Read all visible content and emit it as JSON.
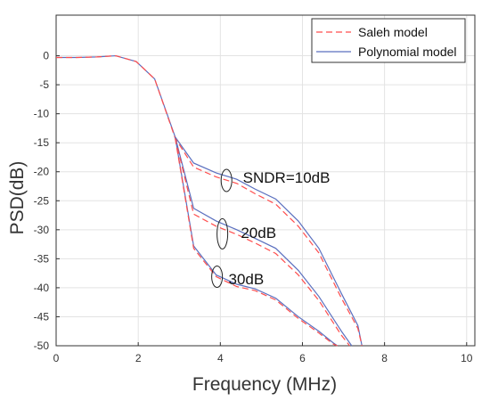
{
  "chart_data": {
    "type": "line",
    "title": "",
    "xlabel": "Frequency (MHz)",
    "ylabel": "PSD(dB)",
    "xlim": [
      0,
      10.2
    ],
    "ylim": [
      -50,
      7
    ],
    "xticks": [
      0,
      2,
      4,
      6,
      8,
      10
    ],
    "yticks": [
      0,
      -5,
      -10,
      -15,
      -20,
      -25,
      -30,
      -35,
      -40,
      -45,
      -50
    ],
    "grid": true,
    "legend_placement": "top-right",
    "legend": [
      "Saleh model",
      "Polynomial model"
    ],
    "colors": {
      "saleh": "#ff4d4d",
      "polynomial": "#5a6fbf",
      "grid": "#e3e3e3",
      "axis": "#333333"
    },
    "annotations": [
      {
        "text": "SNDR=10dB",
        "x": 4.55,
        "y": -21
      },
      {
        "text": "20dB",
        "x": 4.5,
        "y": -30.5
      },
      {
        "text": "30dB",
        "x": 4.2,
        "y": -38.5
      }
    ],
    "series": [
      {
        "name": "Polynomial model",
        "group": "SNDR=10dB",
        "x": [
          0,
          0.5,
          1,
          1.45,
          1.95,
          2.4,
          2.9,
          3.35,
          3.9,
          4.4,
          4.85,
          5.35,
          5.9,
          6.4,
          6.95,
          7.35,
          7.45
        ],
        "y": [
          -0.3,
          -0.3,
          -0.2,
          0,
          -1,
          -4,
          -14,
          -18.5,
          -20.2,
          -21.3,
          -23,
          -24.7,
          -28.5,
          -33.2,
          -41,
          -46.5,
          -50
        ]
      },
      {
        "name": "Saleh model",
        "group": "SNDR=10dB",
        "x": [
          0,
          0.5,
          1,
          1.45,
          1.95,
          2.4,
          2.9,
          3.35,
          3.9,
          4.4,
          4.85,
          5.35,
          5.9,
          6.4,
          6.95,
          7.35,
          7.45
        ],
        "y": [
          -0.3,
          -0.3,
          -0.2,
          0,
          -1,
          -4,
          -14.2,
          -19.2,
          -20.9,
          -22,
          -23.8,
          -25.6,
          -29.4,
          -34,
          -41.8,
          -47,
          -50
        ]
      },
      {
        "name": "Polynomial model",
        "group": "20dB",
        "x": [
          2.9,
          3.35,
          3.9,
          4.4,
          4.85,
          5.35,
          5.9,
          6.4,
          6.95,
          7.2
        ],
        "y": [
          -14,
          -26.3,
          -28.5,
          -30,
          -31.5,
          -33.2,
          -37,
          -41.5,
          -47.5,
          -50
        ]
      },
      {
        "name": "Saleh model",
        "group": "20dB",
        "x": [
          2.9,
          3.35,
          3.9,
          4.4,
          4.85,
          5.35,
          5.9,
          6.4,
          6.95,
          7.15
        ],
        "y": [
          -14.2,
          -27.3,
          -29.4,
          -30.8,
          -32.3,
          -34.1,
          -37.8,
          -42.2,
          -48.2,
          -50
        ]
      },
      {
        "name": "Polynomial model",
        "group": "30dB",
        "x": [
          2.9,
          3.35,
          3.9,
          4.4,
          4.85,
          5.35,
          5.9,
          6.4,
          6.75,
          6.85
        ],
        "y": [
          -14,
          -32.8,
          -37.8,
          -39.4,
          -40.2,
          -41.8,
          -45,
          -47.5,
          -49.5,
          -50
        ]
      },
      {
        "name": "Saleh model",
        "group": "30dB",
        "x": [
          2.9,
          3.35,
          3.9,
          4.4,
          4.85,
          5.35,
          5.9,
          6.4,
          6.75,
          6.85
        ],
        "y": [
          -14.2,
          -33.2,
          -38.1,
          -39.8,
          -40.5,
          -42.1,
          -45.3,
          -47.8,
          -49.7,
          -50
        ]
      }
    ]
  }
}
